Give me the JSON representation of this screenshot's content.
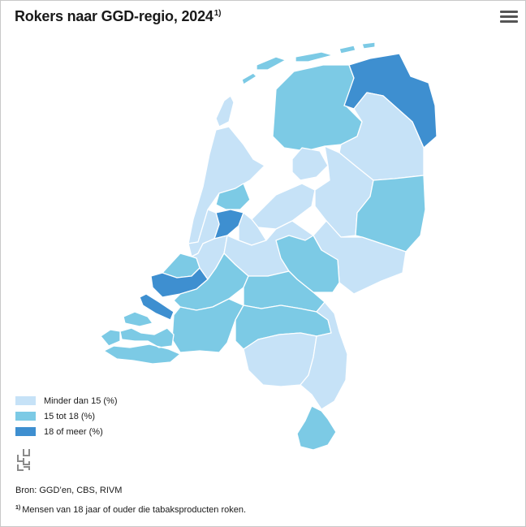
{
  "title": "Rokers naar GGD-regio, 2024",
  "title_note": "1)",
  "menu_icon": "hamburger-menu-icon",
  "legend": [
    {
      "label": "Minder dan 15 (%)",
      "color": "#c6e2f7",
      "key": "low"
    },
    {
      "label": "15 tot 18 (%)",
      "color": "#7ccae5",
      "key": "mid"
    },
    {
      "label": "18 of meer (%)",
      "color": "#3e8fd0",
      "key": "high"
    }
  ],
  "logo": "cbs-logo",
  "source": "Bron: GGD’en, CBS, RIVM",
  "footnote_marker": "1)",
  "footnote_text": "Mensen van 18 jaar of ouder die tabaksproducten roken.",
  "regions": [
    {
      "id": "groningen",
      "category": "high"
    },
    {
      "id": "fryslan",
      "category": "mid"
    },
    {
      "id": "drenthe",
      "category": "low"
    },
    {
      "id": "ijsselland",
      "category": "low"
    },
    {
      "id": "twente",
      "category": "mid"
    },
    {
      "id": "flevoland",
      "category": "low"
    },
    {
      "id": "noord-holland-noord",
      "category": "low"
    },
    {
      "id": "zaanstreek-waterland",
      "category": "mid"
    },
    {
      "id": "amsterdam",
      "category": "high"
    },
    {
      "id": "kennemerland",
      "category": "low"
    },
    {
      "id": "gooi-vechtstreek",
      "category": "low"
    },
    {
      "id": "hollands-midden",
      "category": "low"
    },
    {
      "id": "utrecht",
      "category": "low"
    },
    {
      "id": "haaglanden",
      "category": "mid"
    },
    {
      "id": "rotterdam-rijnmond",
      "category": "high"
    },
    {
      "id": "zuid-holland-zuid",
      "category": "mid"
    },
    {
      "id": "gelderland-midden",
      "category": "mid"
    },
    {
      "id": "noord-oost-gelderland",
      "category": "low"
    },
    {
      "id": "gelderland-zuid",
      "category": "mid"
    },
    {
      "id": "hart-voor-brabant",
      "category": "mid"
    },
    {
      "id": "west-brabant",
      "category": "mid"
    },
    {
      "id": "brabant-zuidoost",
      "category": "low"
    },
    {
      "id": "limburg-noord",
      "category": "low"
    },
    {
      "id": "zuid-limburg",
      "category": "mid"
    },
    {
      "id": "zeeland",
      "category": "mid"
    },
    {
      "id": "goeree-overflakkee",
      "category": "high"
    },
    {
      "id": "waddeneilanden",
      "category": "mid"
    },
    {
      "id": "texel",
      "category": "low"
    }
  ]
}
